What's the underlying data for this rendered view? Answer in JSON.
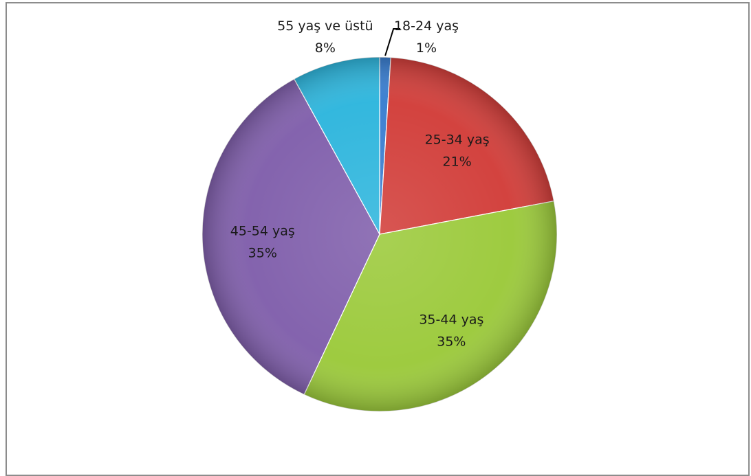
{
  "chart_data": {
    "type": "pie",
    "slices": [
      {
        "name": "18-24 yaş",
        "pct_label": "1%",
        "value": 1,
        "color": "#3a7ed0"
      },
      {
        "name": "25-34 yaş",
        "pct_label": "21%",
        "value": 21,
        "color": "#d23f3b"
      },
      {
        "name": "35-44 yaş",
        "pct_label": "35%",
        "value": 35,
        "color": "#9cca3c"
      },
      {
        "name": "45-54 yaş",
        "pct_label": "35%",
        "value": 35,
        "color": "#8160ac"
      },
      {
        "name": "55 yaş ve üstü",
        "pct_label": "8%",
        "value": 8,
        "color": "#2fb6dd"
      }
    ],
    "start_angle_deg": 0,
    "direction": "clockwise",
    "legend": "none",
    "label_color": "#1a1a1a",
    "leader_line_on": "18-24 yaş"
  }
}
